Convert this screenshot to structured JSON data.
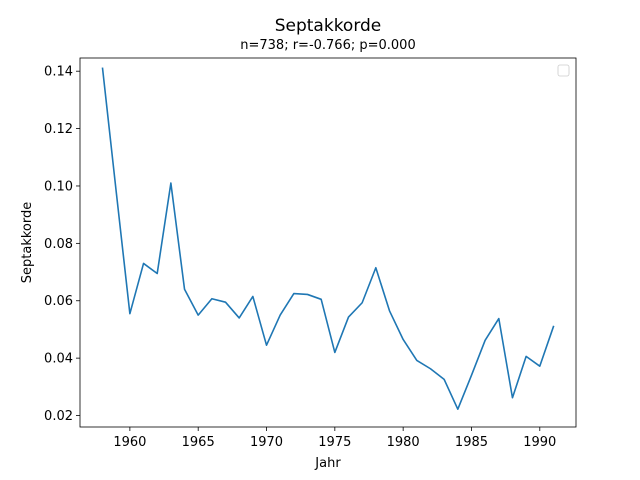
{
  "chart_data": {
    "type": "line",
    "title": "Septakkorde",
    "subtitle": "n=738; r=-0.766; p=0.000",
    "xlabel": "Jahr",
    "ylabel": "Septakkorde",
    "xlim": [
      1956.35,
      1992.65
    ],
    "ylim": [
      0.016,
      0.1446
    ],
    "xticks": [
      1960,
      1965,
      1970,
      1975,
      1980,
      1985,
      1990
    ],
    "yticks": [
      0.02,
      0.04,
      0.06,
      0.08,
      0.1,
      0.12,
      0.14
    ],
    "ytick_labels": [
      "0.02",
      "0.04",
      "0.06",
      "0.08",
      "0.10",
      "0.12",
      "0.14"
    ],
    "grid": false,
    "legend": "top-right",
    "series": [
      {
        "color": "#1f77b4",
        "x": [
          1958,
          1959,
          1960,
          1961,
          1962,
          1963,
          1964,
          1965,
          1966,
          1967,
          1968,
          1969,
          1970,
          1971,
          1972,
          1973,
          1974,
          1975,
          1976,
          1977,
          1978,
          1979,
          1980,
          1981,
          1982,
          1983,
          1984,
          1985,
          1986,
          1987,
          1988,
          1989,
          1990,
          1991
        ],
        "y": [
          0.141,
          0.098,
          0.0555,
          0.073,
          0.0695,
          0.101,
          0.064,
          0.055,
          0.0607,
          0.0595,
          0.054,
          0.0615,
          0.0445,
          0.055,
          0.0625,
          0.0622,
          0.0605,
          0.042,
          0.0543,
          0.0593,
          0.0715,
          0.0565,
          0.0465,
          0.0392,
          0.0363,
          0.0326,
          0.0222,
          0.034,
          0.0462,
          0.0538,
          0.0262,
          0.0406,
          0.0372,
          0.051
        ]
      }
    ]
  }
}
